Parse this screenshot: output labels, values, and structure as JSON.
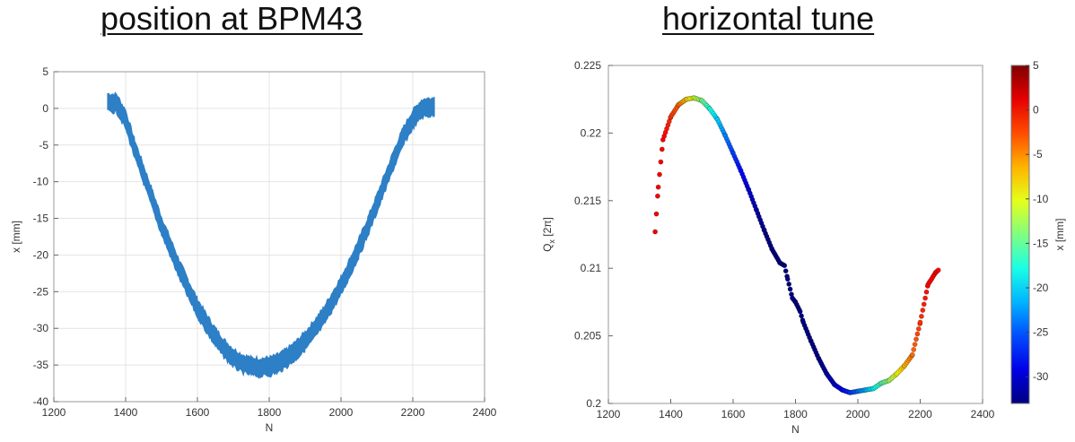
{
  "chart_data": [
    {
      "type": "area",
      "title": "position at BPM43",
      "xlabel": "N",
      "ylabel": "x [mm]",
      "xlim": [
        1200,
        2400
      ],
      "ylim": [
        -40,
        5
      ],
      "xticks": [
        1200,
        1400,
        1600,
        1800,
        2000,
        2200,
        2400
      ],
      "yticks": [
        5,
        0,
        -5,
        -10,
        -15,
        -20,
        -25,
        -30,
        -35,
        -40
      ],
      "grid": true,
      "color": "#2d7fc6",
      "series": [
        {
          "x": [
            1350,
            1375,
            1400,
            1425,
            1450,
            1475,
            1500,
            1525,
            1550,
            1575,
            1600,
            1625,
            1650,
            1675,
            1700,
            1725,
            1750,
            1775,
            1800,
            1825,
            1850,
            1875,
            1900,
            1925,
            1950,
            1975,
            2000,
            2025,
            2050,
            2075,
            2100,
            2125,
            2150,
            2175,
            2200,
            2225,
            2250,
            2260
          ],
          "y": [
            0.8,
            0.7,
            -1.5,
            -5.5,
            -9.0,
            -12.5,
            -16.0,
            -19.0,
            -22.0,
            -24.7,
            -27.2,
            -29.3,
            -31.2,
            -32.8,
            -34.0,
            -34.8,
            -35.2,
            -35.3,
            -35.2,
            -34.8,
            -34.0,
            -33.0,
            -31.7,
            -30.2,
            -28.5,
            -26.4,
            -24.2,
            -21.7,
            -19.0,
            -16.1,
            -13.0,
            -9.8,
            -6.6,
            -3.7,
            -1.5,
            0.0,
            0.2,
            0.3
          ],
          "band": 1.5
        }
      ]
    },
    {
      "type": "scatter",
      "title": "horizontal tune",
      "xlabel": "N",
      "ylabel": "Q",
      "ylabel_sub": "x",
      "ylabel_unit": "[2π]",
      "xlim": [
        1200,
        2400
      ],
      "ylim": [
        0.2,
        0.225
      ],
      "xticks": [
        1200,
        1400,
        1600,
        1800,
        2000,
        2200,
        2400
      ],
      "ytick_values": [
        0.2,
        0.205,
        0.21,
        0.215,
        0.22,
        0.225
      ],
      "ytick_labels": [
        "0.2",
        "0.205",
        "0.21",
        "0.215",
        "0.22",
        "0.225"
      ],
      "grid": false,
      "colorbar": {
        "label": "x [mm]",
        "range": [
          -33,
          5
        ],
        "ticks": [
          5,
          0,
          -5,
          -10,
          -15,
          -20,
          -25,
          -30
        ],
        "colormap": "jet"
      },
      "series": [
        {
          "x": [
            1350,
            1360,
            1375,
            1400,
            1425,
            1450,
            1475,
            1500,
            1525,
            1550,
            1575,
            1600,
            1625,
            1650,
            1675,
            1700,
            1725,
            1750,
            1765,
            1775,
            1790,
            1800,
            1815,
            1825,
            1850,
            1875,
            1900,
            1925,
            1950,
            1975,
            2000,
            2025,
            2050,
            2075,
            2100,
            2125,
            2150,
            2175,
            2200,
            2225,
            2250,
            2260
          ],
          "y": [
            0.2127,
            0.216,
            0.2195,
            0.2212,
            0.2221,
            0.2225,
            0.2226,
            0.2224,
            0.2218,
            0.221,
            0.2198,
            0.2185,
            0.2172,
            0.2158,
            0.2143,
            0.2128,
            0.2114,
            0.2104,
            0.2102,
            0.2092,
            0.2078,
            0.2075,
            0.2068,
            0.206,
            0.2046,
            0.2033,
            0.2022,
            0.2014,
            0.201,
            0.2008,
            0.2009,
            0.201,
            0.2011,
            0.2015,
            0.2017,
            0.2022,
            0.2028,
            0.2036,
            0.206,
            0.2088,
            0.2097,
            0.2099
          ],
          "c": [
            0.8,
            0.7,
            0.5,
            -1.5,
            -3.5,
            -7.3,
            -10.8,
            -14.2,
            -17.5,
            -20.5,
            -23.4,
            -25.9,
            -28.0,
            -29.9,
            -31.5,
            -32.8,
            -33.8,
            -34.5,
            -34.8,
            -35.0,
            -35.2,
            -35.2,
            -35.1,
            -34.8,
            -34.0,
            -33.0,
            -31.7,
            -30.2,
            -28.5,
            -26.4,
            -24.2,
            -21.7,
            -19.0,
            -16.1,
            -13.0,
            -9.8,
            -6.6,
            -3.7,
            -1.5,
            0.0,
            0.2,
            0.3
          ]
        }
      ]
    }
  ]
}
